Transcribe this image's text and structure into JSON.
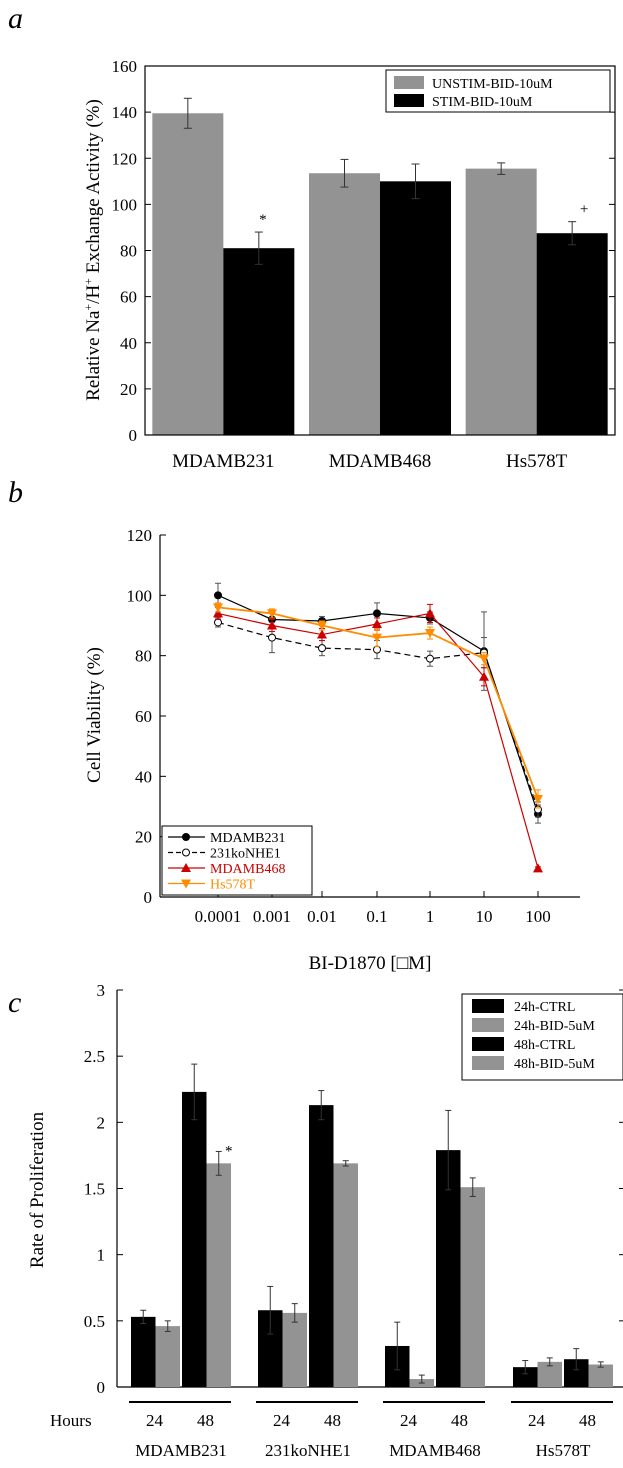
{
  "panels": {
    "a": "a",
    "b": "b",
    "c": "c"
  },
  "chart_data": [
    {
      "type": "bar",
      "ylabel": "Relative Na",
      "ylabel_super1": "+",
      "ylabel_mid": "/H",
      "ylabel_super2": "+",
      "ylabel_tail": " Exchange Activity (%)",
      "ylim": [
        0,
        160
      ],
      "yticks": [
        0,
        20,
        40,
        60,
        80,
        100,
        120,
        140,
        160
      ],
      "categories": [
        "MDAMB231",
        "MDAMB468",
        "Hs578T"
      ],
      "legend_position": "top-right",
      "series": [
        {
          "name": "UNSTIM-BID-10uM",
          "color": "#939393",
          "values": [
            139.5,
            113.5,
            115.5
          ],
          "errors": [
            6.5,
            6,
            2.5
          ]
        },
        {
          "name": "STIM-BID-10uM",
          "color": "#000000",
          "values": [
            81,
            110,
            87.5
          ],
          "errors": [
            7,
            7.5,
            5
          ]
        }
      ],
      "annotations": [
        {
          "text": "*",
          "category": 0,
          "series": 1
        },
        {
          "text": "+",
          "category": 2,
          "series": 1
        }
      ]
    },
    {
      "type": "line",
      "xlabel": "BI-D1870 [□M]",
      "ylabel": "Cell Viability (%)",
      "x": [
        0.0001,
        0.001,
        0.01,
        0.1,
        1,
        10,
        100
      ],
      "xtick_labels": [
        "0.0001",
        "0.001",
        "0.01",
        "0.1",
        "1",
        "10",
        "100"
      ],
      "xscale": "log",
      "ylim": [
        0,
        120
      ],
      "yticks": [
        0,
        20,
        40,
        60,
        80,
        100,
        120
      ],
      "legend_position": "bottom-left",
      "series": [
        {
          "name": "MDAMB231",
          "color": "#000000",
          "marker": "circle-filled",
          "dash": "solid",
          "values": [
            100,
            92,
            91.5,
            94,
            92.5,
            81.5,
            27.5
          ],
          "errors": [
            4,
            2,
            1.5,
            3.5,
            2,
            13,
            3
          ]
        },
        {
          "name": "231koNHE1",
          "color": "#000000",
          "marker": "circle-open",
          "dash": "dashed",
          "values": [
            91,
            86,
            82.5,
            82,
            79,
            81,
            29
          ],
          "errors": [
            1.5,
            5,
            2.5,
            3,
            2.5,
            5,
            2.5
          ]
        },
        {
          "name": "MDAMB468",
          "color": "#cc0000",
          "marker": "triangle-up",
          "dash": "solid",
          "values": [
            94,
            90,
            87,
            90.5,
            94,
            73,
            9.5
          ],
          "errors": [
            2,
            2,
            2,
            2,
            3,
            3,
            0.5
          ]
        },
        {
          "name": "Hs578T",
          "color": "#ff8c00",
          "marker": "triangle-down",
          "dash": "solid",
          "values": [
            96,
            94,
            90,
            86,
            87.5,
            79,
            32.5
          ],
          "errors": [
            1.5,
            1.5,
            1.5,
            3,
            2,
            2,
            3
          ]
        }
      ]
    },
    {
      "type": "bar",
      "ylabel": "Rate of Proliferation",
      "ylim": [
        0,
        3
      ],
      "yticks": [
        "0",
        "0.5",
        "1",
        "1.5",
        "2",
        "2.5",
        "3"
      ],
      "hours_label": "Hours",
      "hours": [
        "24",
        "48"
      ],
      "groups": [
        "MDAMB231",
        "231koNHE1",
        "MDAMB468",
        "Hs578T"
      ],
      "legend_position": "top-right",
      "legend": [
        {
          "name": "24h-CTRL",
          "color": "#000000"
        },
        {
          "name": "24h-BID-5uM",
          "color": "#939393"
        },
        {
          "name": "48h-CTRL",
          "color": "#000000"
        },
        {
          "name": "48h-BID-5uM",
          "color": "#939393"
        }
      ],
      "series": [
        {
          "name": "24h-CTRL",
          "color": "#000000",
          "values": [
            0.53,
            0.58,
            0.31,
            0.15
          ],
          "errors": [
            0.05,
            0.18,
            0.18,
            0.05
          ]
        },
        {
          "name": "24h-BID-5uM",
          "color": "#939393",
          "values": [
            0.46,
            0.56,
            0.06,
            0.19
          ],
          "errors": [
            0.04,
            0.07,
            0.03,
            0.03
          ]
        },
        {
          "name": "48h-CTRL",
          "color": "#000000",
          "values": [
            2.23,
            2.13,
            1.79,
            0.21
          ],
          "errors": [
            0.21,
            0.11,
            0.3,
            0.08
          ]
        },
        {
          "name": "48h-BID-5uM",
          "color": "#939393",
          "values": [
            1.69,
            1.69,
            1.51,
            0.17
          ],
          "errors": [
            0.09,
            0.02,
            0.07,
            0.02
          ]
        }
      ],
      "annotations": [
        {
          "text": "*",
          "group": 0,
          "series": 3
        }
      ]
    }
  ]
}
